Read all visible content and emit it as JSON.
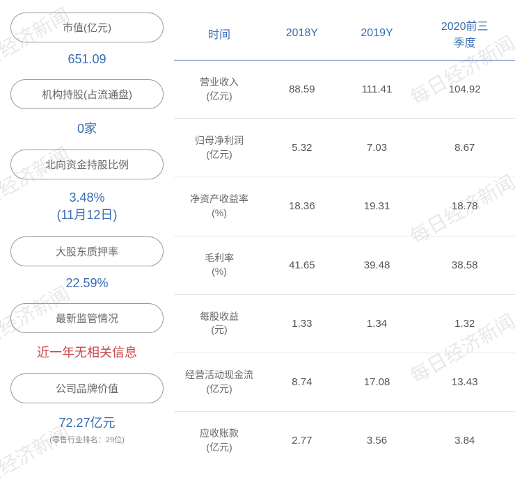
{
  "watermark_text": "每日经济新闻",
  "left": {
    "items": [
      {
        "label": "市值(亿元)",
        "value": "651.09",
        "note": ""
      },
      {
        "label": "机构持股(占流通盘)",
        "value": "0家",
        "note": ""
      },
      {
        "label": "北向资金持股比例",
        "value": "3.48%\n(11月12日)",
        "note": ""
      },
      {
        "label": "大股东质押率",
        "value": "22.59%",
        "note": ""
      },
      {
        "label": "最新监管情况",
        "value": "近一年无相关信息",
        "note": "",
        "red": true
      },
      {
        "label": "公司品牌价值",
        "value": "72.27亿元",
        "note": "(零售行业排名：29位)"
      }
    ]
  },
  "table": {
    "columns": [
      "时间",
      "2018Y",
      "2019Y",
      "2020前三\n季度"
    ],
    "rows": [
      [
        "营业收入\n(亿元)",
        "88.59",
        "111.41",
        "104.92"
      ],
      [
        "归母净利润\n(亿元)",
        "5.32",
        "7.03",
        "8.67"
      ],
      [
        "净资产收益率\n(%)",
        "18.36",
        "19.31",
        "18.78"
      ],
      [
        "毛利率\n(%)",
        "41.65",
        "39.48",
        "38.58"
      ],
      [
        "每股收益\n(元)",
        "1.33",
        "1.34",
        "1.32"
      ],
      [
        "经营活动现金流\n(亿元)",
        "8.74",
        "17.08",
        "13.43"
      ],
      [
        "应收账款\n(亿元)",
        "2.77",
        "3.56",
        "3.84"
      ]
    ]
  },
  "colors": {
    "accent": "#3a6db0",
    "red": "#c94545",
    "text_gray": "#666",
    "border_gray": "#999",
    "row_border": "#e5e5e5",
    "watermark": "#e8e8e8"
  }
}
